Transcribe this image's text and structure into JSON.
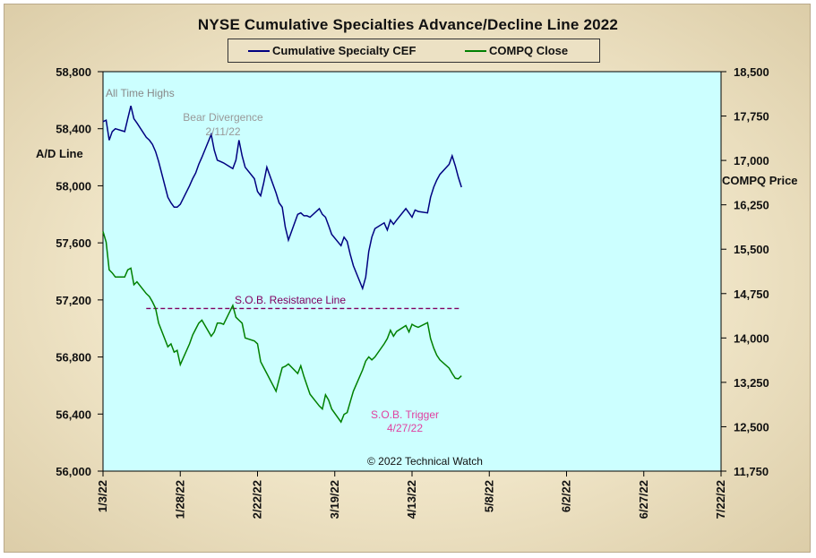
{
  "chart_data": {
    "type": "line",
    "title": "NYSE Cumulative Specialties Advance/Decline Line 2022",
    "colors": {
      "plot_background": "#ccffff",
      "cef_line": "#000080",
      "compq_line": "#008000",
      "resistance_line": "#800060",
      "annotation_gray": "#999999",
      "annotation_magenta": "#e040a0"
    },
    "legend": [
      {
        "label": "Cumulative Specialty CEF",
        "color": "#000080"
      },
      {
        "label": "COMPQ Close",
        "color": "#008000"
      }
    ],
    "y_left": {
      "label": "A/D Line",
      "ylim": [
        56000,
        58800
      ],
      "ticks": [
        "58,800",
        "58,400",
        "58,000",
        "57,600",
        "57,200",
        "56,800",
        "56,400",
        "56,000"
      ]
    },
    "y_right": {
      "label": "COMPQ Price",
      "ylim": [
        11750,
        18500
      ],
      "ticks": [
        "18,500",
        "17,750",
        "17,000",
        "16,250",
        "15,500",
        "14,750",
        "14,000",
        "13,250",
        "12,500",
        "11,750"
      ]
    },
    "x_ticks": [
      "1/3/22",
      "1/28/22",
      "2/22/22",
      "3/19/22",
      "4/13/22",
      "5/8/22",
      "6/2/22",
      "6/27/22",
      "7/22/22"
    ],
    "x_range_days": [
      0,
      200
    ],
    "series": [
      {
        "name": "Cumulative Specialty CEF",
        "axis": "left",
        "x": [
          0,
          1,
          2,
          3,
          4,
          7,
          8,
          9,
          10,
          11,
          14,
          15,
          16,
          17,
          18,
          21,
          22,
          23,
          24,
          25,
          28,
          29,
          30,
          31,
          32,
          35,
          36,
          37,
          38,
          39,
          42,
          43,
          44,
          45,
          46,
          49,
          50,
          51,
          52,
          53,
          56,
          57,
          58,
          59,
          60,
          63,
          64,
          65,
          66,
          67,
          70,
          71,
          72,
          73,
          74,
          77,
          78,
          79,
          80,
          81,
          84,
          85,
          86,
          87,
          88,
          91,
          92,
          93,
          94,
          95,
          98,
          99,
          100,
          101,
          102,
          105,
          106,
          107,
          108,
          109,
          112,
          113,
          114,
          115,
          116
        ],
        "values": [
          58450,
          58460,
          58320,
          58380,
          58400,
          58380,
          58470,
          58560,
          58470,
          58440,
          58340,
          58320,
          58290,
          58240,
          58170,
          57920,
          57880,
          57850,
          57850,
          57870,
          58000,
          58050,
          58090,
          58150,
          58200,
          58360,
          58250,
          58180,
          58170,
          58160,
          58120,
          58180,
          58320,
          58210,
          58130,
          58050,
          57960,
          57930,
          58020,
          58130,
          57950,
          57880,
          57850,
          57710,
          57620,
          57800,
          57810,
          57790,
          57790,
          57780,
          57840,
          57800,
          57780,
          57720,
          57660,
          57580,
          57640,
          57610,
          57520,
          57440,
          57280,
          57360,
          57540,
          57640,
          57700,
          57740,
          57690,
          57760,
          57730,
          57760,
          57840,
          57810,
          57780,
          57830,
          57820,
          57810,
          57920,
          57990,
          58040,
          58080,
          58150,
          58210,
          58140,
          58060,
          57990
        ]
      },
      {
        "name": "COMPQ Close",
        "axis": "right",
        "x": [
          0,
          1,
          2,
          3,
          4,
          7,
          8,
          9,
          10,
          11,
          14,
          15,
          16,
          17,
          18,
          21,
          22,
          23,
          24,
          25,
          28,
          29,
          30,
          31,
          32,
          35,
          36,
          37,
          38,
          39,
          42,
          43,
          44,
          45,
          46,
          49,
          50,
          51,
          52,
          53,
          56,
          57,
          58,
          59,
          60,
          63,
          64,
          65,
          66,
          67,
          70,
          71,
          72,
          73,
          74,
          77,
          78,
          79,
          80,
          81,
          84,
          85,
          86,
          87,
          88,
          91,
          92,
          93,
          94,
          95,
          98,
          99,
          100,
          101,
          102,
          105,
          106,
          107,
          108,
          109,
          112,
          113,
          114,
          115,
          116
        ],
        "values": [
          15800,
          15620,
          15150,
          15100,
          15030,
          15030,
          15150,
          15180,
          14900,
          14950,
          14750,
          14700,
          14610,
          14500,
          14250,
          13850,
          13900,
          13760,
          13790,
          13550,
          13900,
          14050,
          14150,
          14250,
          14300,
          14030,
          14100,
          14250,
          14250,
          14230,
          14550,
          14350,
          14300,
          14250,
          14000,
          13950,
          13900,
          13600,
          13500,
          13400,
          13100,
          13300,
          13500,
          13520,
          13560,
          13400,
          13530,
          13350,
          13200,
          13050,
          12850,
          12800,
          13040,
          12950,
          12800,
          12580,
          12710,
          12740,
          12920,
          13100,
          13460,
          13610,
          13680,
          13630,
          13680,
          13900,
          13990,
          14130,
          14030,
          14110,
          14210,
          14100,
          14230,
          14200,
          14180,
          14260,
          13990,
          13830,
          13710,
          13630,
          13490,
          13400,
          13320,
          13310,
          13360
        ]
      }
    ],
    "resistance_line": {
      "label": "S.O.B. Resistance Line",
      "value": 57140,
      "axis": "left",
      "x_range": [
        14,
        116
      ]
    },
    "annotations": [
      {
        "text": "All Time Highs"
      },
      {
        "text": "Bear Divergence"
      },
      {
        "text": "2/11/22"
      },
      {
        "text": "S.O.B. Trigger"
      },
      {
        "text": "4/27/22"
      }
    ],
    "copyright": "© 2022 Technical Watch"
  }
}
